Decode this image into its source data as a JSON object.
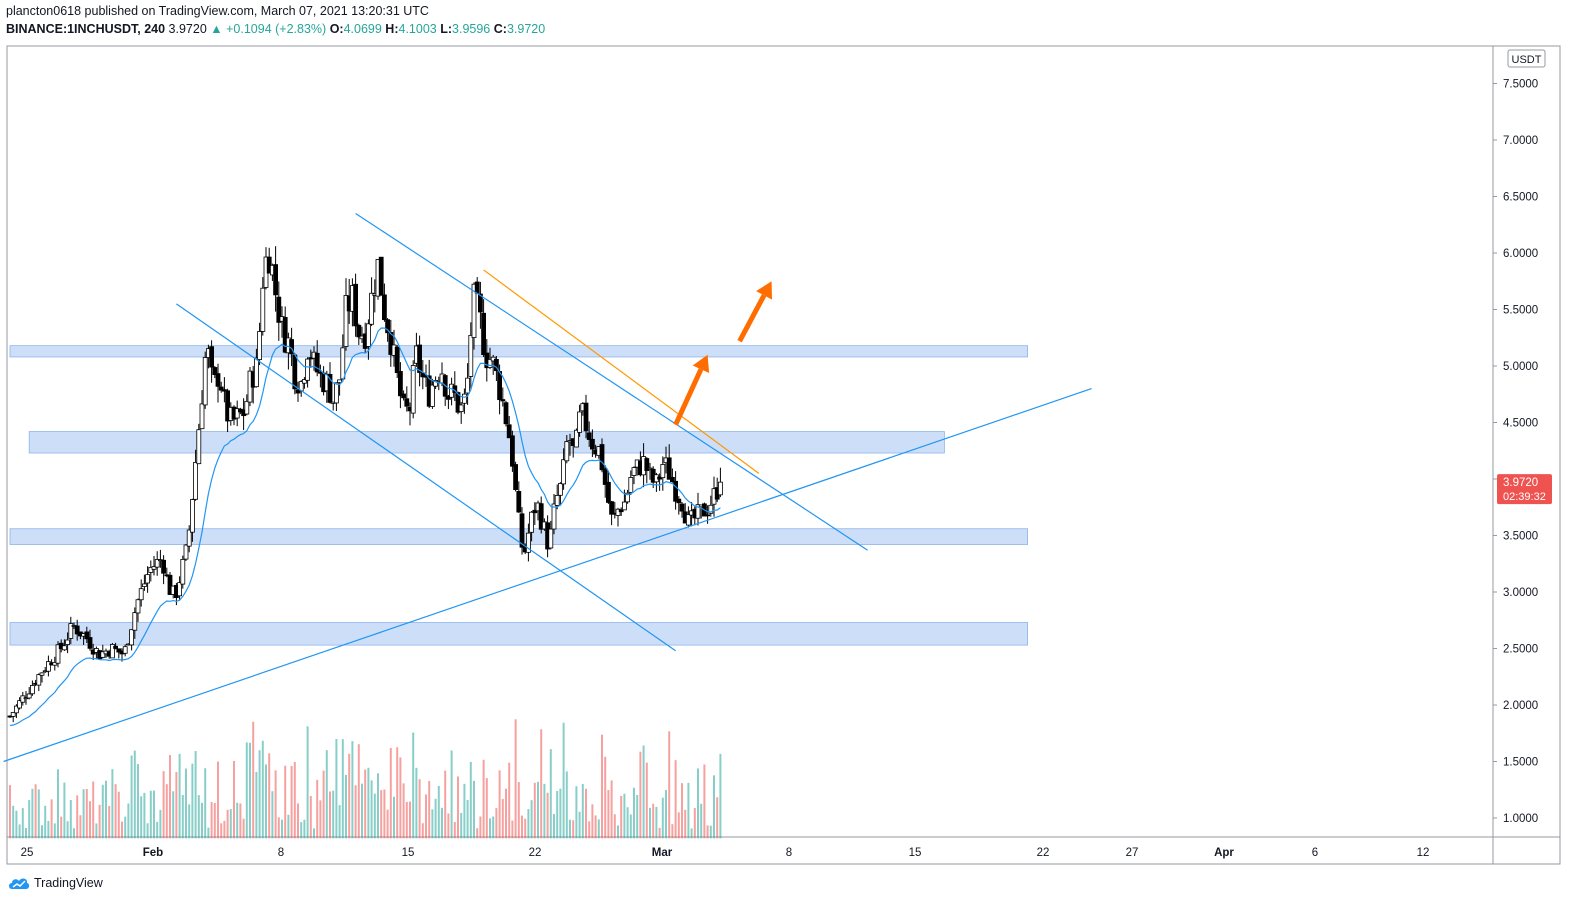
{
  "header": {
    "published": "plancton0618 published on TradingView.com, March 07, 2021 13:20:31 UTC",
    "symbol": "BINANCE:1INCHUSDT, 240",
    "last": "3.9720",
    "change": "+0.1094 (+2.83%)",
    "o_label": "O:",
    "o": "4.0699",
    "h_label": "H:",
    "h": "4.1003",
    "l_label": "L:",
    "l": "3.9596",
    "c_label": "C:",
    "c": "3.9720"
  },
  "footer": {
    "brand": "TradingView"
  },
  "chart_data": {
    "type": "candlestick",
    "currency": "USDT",
    "ylim": [
      0.85,
      7.9
    ],
    "y_ticks": [
      "7.5000",
      "7.0000",
      "6.5000",
      "6.0000",
      "5.5000",
      "5.0000",
      "4.5000",
      "4.0000",
      "3.5000",
      "3.0000",
      "2.5000",
      "2.0000",
      "1.5000",
      "1.0000"
    ],
    "x_ticks": [
      "25",
      "Feb",
      "8",
      "15",
      "22",
      "Mar",
      "8",
      "15",
      "22",
      "27",
      "Apr",
      "6",
      "12"
    ],
    "price_label": {
      "value": "3.9720",
      "countdown": "02:39:32"
    },
    "price_path": [
      [
        0,
        1.9
      ],
      [
        5,
        2.3
      ],
      [
        8,
        2.5
      ],
      [
        10,
        2.7
      ],
      [
        12,
        2.6
      ],
      [
        14,
        2.45
      ],
      [
        16,
        2.5
      ],
      [
        18,
        2.45
      ],
      [
        20,
        2.9
      ],
      [
        22,
        3.2
      ],
      [
        24,
        3.3
      ],
      [
        25,
        3.05
      ],
      [
        26,
        2.95
      ],
      [
        28,
        3.4
      ],
      [
        29,
        4.0
      ],
      [
        30,
        4.6
      ],
      [
        31,
        5.2
      ],
      [
        32,
        4.8
      ],
      [
        33,
        4.95
      ],
      [
        34,
        4.6
      ],
      [
        35,
        4.5
      ],
      [
        37,
        4.6
      ],
      [
        38,
        4.9
      ],
      [
        39,
        5.0
      ],
      [
        40,
        5.9
      ],
      [
        41,
        6.0
      ],
      [
        42,
        5.6
      ],
      [
        43,
        5.3
      ],
      [
        44,
        5.2
      ],
      [
        45,
        4.9
      ],
      [
        46,
        4.85
      ],
      [
        47,
        5.2
      ],
      [
        48,
        5.0
      ],
      [
        49,
        4.9
      ],
      [
        50,
        4.85
      ],
      [
        51,
        4.7
      ],
      [
        52,
        4.9
      ],
      [
        53,
        5.5
      ],
      [
        54,
        5.6
      ],
      [
        55,
        5.3
      ],
      [
        56,
        5.3
      ],
      [
        57,
        5.6
      ],
      [
        58,
        5.9
      ],
      [
        59,
        5.5
      ],
      [
        60,
        5.25
      ],
      [
        61,
        4.9
      ],
      [
        62,
        4.6
      ],
      [
        63,
        4.6
      ],
      [
        64,
        5.1
      ],
      [
        65,
        4.9
      ],
      [
        66,
        4.75
      ],
      [
        67,
        4.9
      ],
      [
        68,
        5.0
      ],
      [
        69,
        4.75
      ],
      [
        70,
        4.75
      ],
      [
        71,
        4.6
      ],
      [
        72,
        4.75
      ],
      [
        73,
        5.6
      ],
      [
        74,
        5.45
      ],
      [
        75,
        5.1
      ],
      [
        76,
        5.05
      ],
      [
        77,
        4.85
      ],
      [
        78,
        4.6
      ],
      [
        79,
        4.3
      ],
      [
        80,
        3.7
      ],
      [
        81,
        3.3
      ],
      [
        82,
        3.6
      ],
      [
        83,
        3.8
      ],
      [
        84,
        3.6
      ],
      [
        85,
        3.4
      ],
      [
        86,
        3.8
      ],
      [
        87,
        3.95
      ],
      [
        88,
        4.4
      ],
      [
        89,
        4.2
      ],
      [
        90,
        4.6
      ],
      [
        91,
        4.45
      ],
      [
        92,
        4.3
      ],
      [
        93,
        4.25
      ],
      [
        94,
        3.9
      ],
      [
        95,
        3.6
      ],
      [
        96,
        3.75
      ],
      [
        97,
        3.8
      ],
      [
        98,
        4.05
      ],
      [
        99,
        4.1
      ],
      [
        100,
        4.15
      ],
      [
        101,
        4.0
      ],
      [
        102,
        3.95
      ],
      [
        103,
        4.15
      ],
      [
        104,
        4.05
      ],
      [
        105,
        3.9
      ],
      [
        106,
        3.8
      ],
      [
        107,
        3.6
      ],
      [
        108,
        3.65
      ],
      [
        109,
        3.7
      ],
      [
        110,
        3.75
      ],
      [
        111,
        3.85
      ],
      [
        112,
        3.97
      ]
    ],
    "ma_offset": 0.08,
    "volume": {
      "range": [
        0.82,
        2.55
      ]
    },
    "support_resistance_zones": [
      {
        "start": 0,
        "end": 159,
        "low": 5.08,
        "high": 5.18
      },
      {
        "start": 3,
        "end": 146,
        "low": 4.23,
        "high": 4.42
      },
      {
        "start": 0,
        "end": 159,
        "low": 3.42,
        "high": 3.56
      },
      {
        "start": 0,
        "end": 159,
        "low": 2.53,
        "high": 2.73
      }
    ],
    "trend_lines": [
      {
        "color": "#2196f3",
        "from": [
          -1,
          1.5
        ],
        "to": [
          169,
          4.8
        ]
      },
      {
        "color": "#2196f3",
        "from": [
          54,
          6.35
        ],
        "to": [
          134,
          3.37
        ]
      },
      {
        "color": "#2196f3",
        "from": [
          26,
          5.55
        ],
        "to": [
          104,
          2.48
        ]
      },
      {
        "color": "#ff9800",
        "from": [
          74,
          5.85
        ],
        "to": [
          117,
          4.05
        ]
      }
    ],
    "arrows": [
      {
        "from": [
          104,
          4.48
        ],
        "to": [
          109,
          5.1
        ]
      },
      {
        "from": [
          114,
          5.22
        ],
        "to": [
          119,
          5.75
        ]
      }
    ],
    "colors": {
      "up": "#26a69a",
      "down": "#ef5350",
      "ma": "#2196f3",
      "zone": "#bcd4f5",
      "zone_edge": "#8fb4ec",
      "arrow": "#ff6d00",
      "candle": "#000000"
    }
  }
}
